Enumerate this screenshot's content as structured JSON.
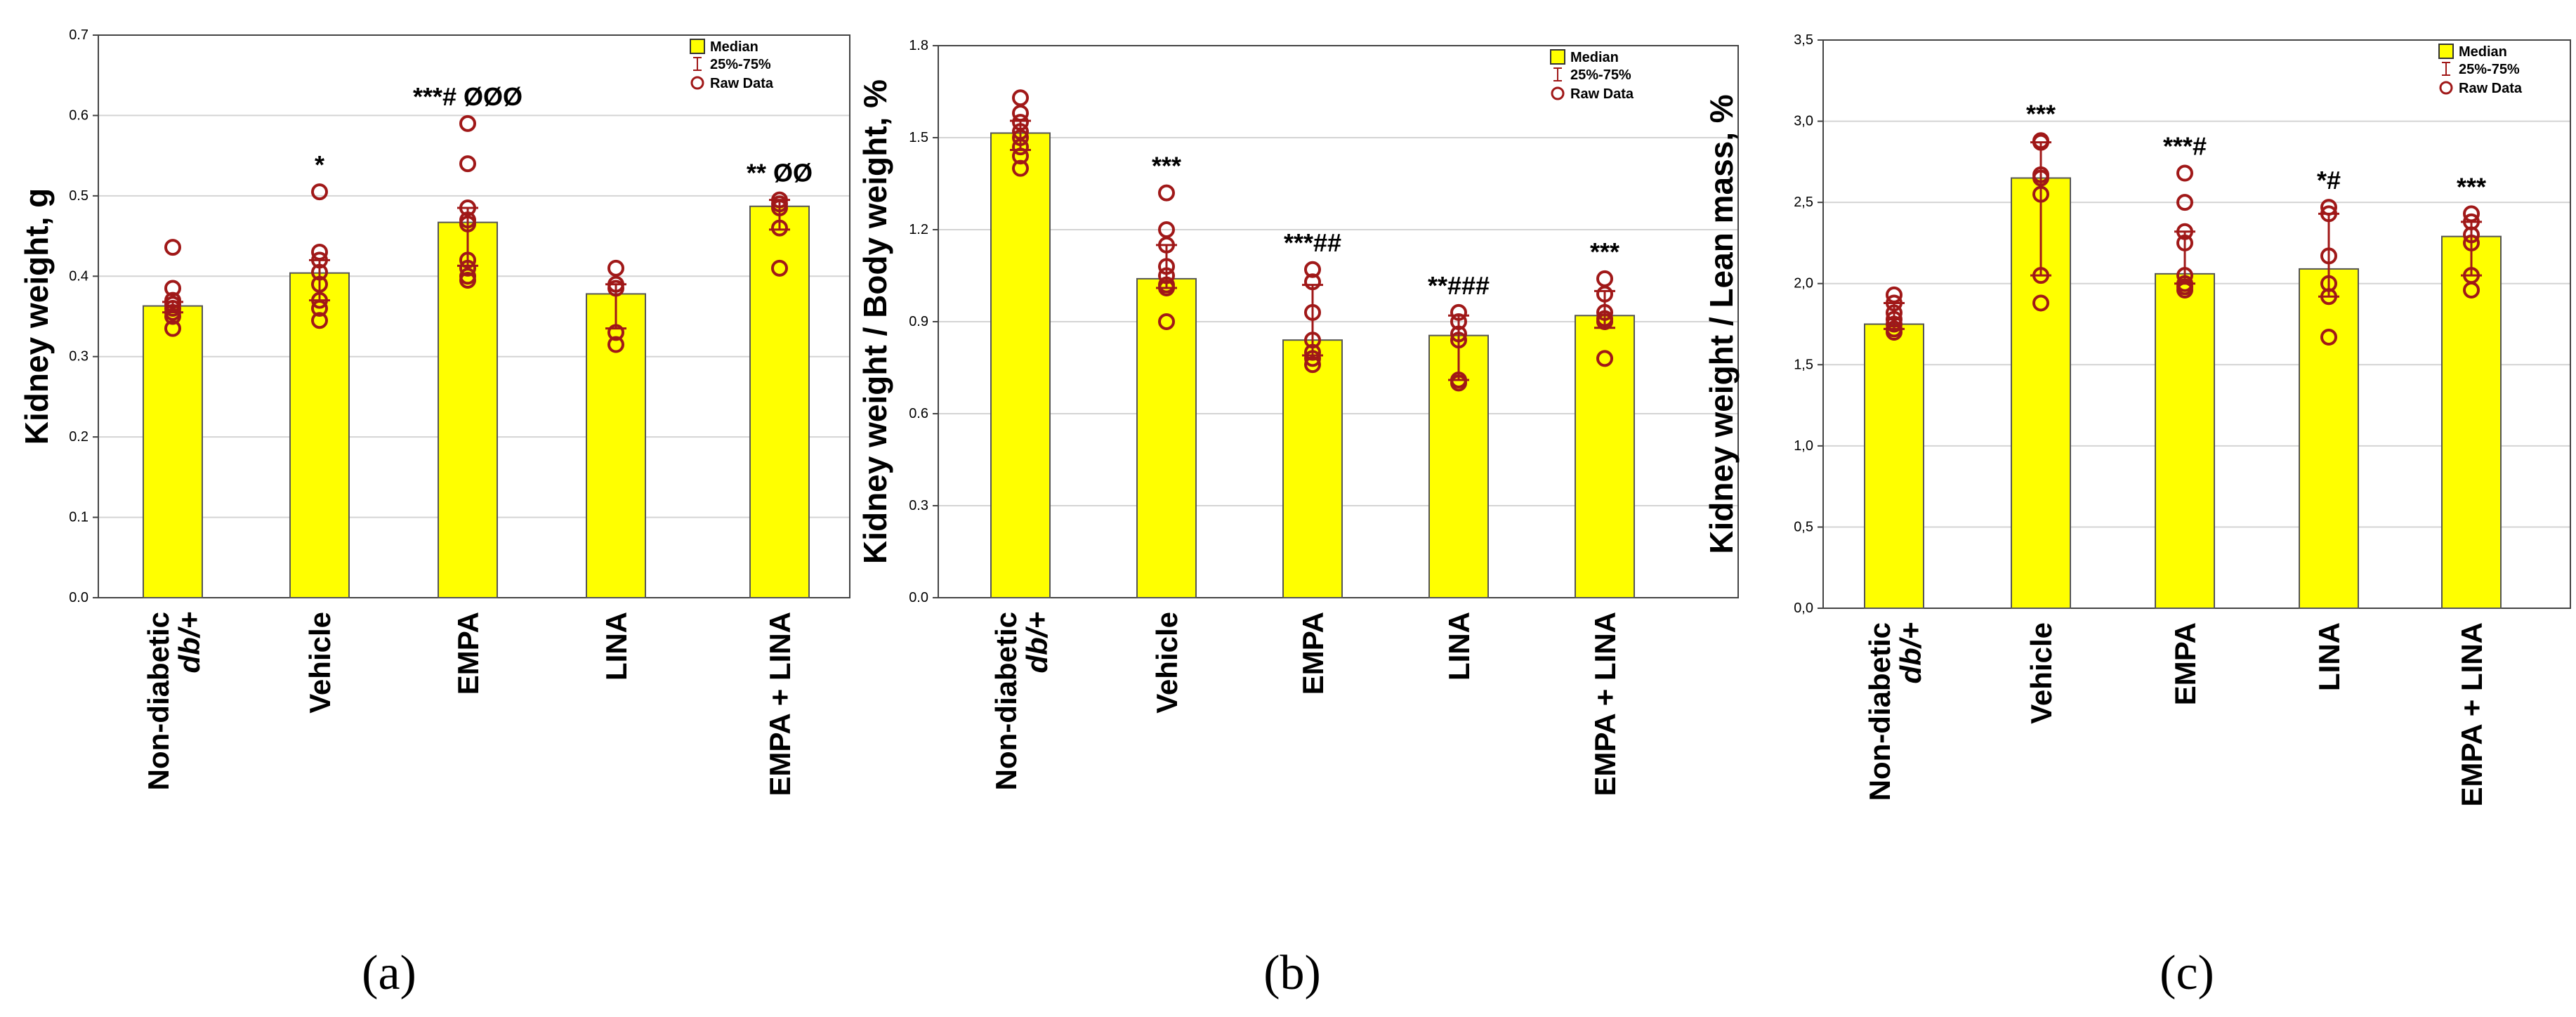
{
  "figure_labels": [
    "(a)",
    "(b)",
    "(c)"
  ],
  "chart_data": [
    {
      "type": "bar",
      "panel": "(a)",
      "ylabel": "Kidney weight, g",
      "ylim": [
        0,
        0.7
      ],
      "yticks": [
        0.0,
        0.1,
        0.2,
        0.3,
        0.4,
        0.5,
        0.6,
        0.7
      ],
      "ytick_labels": [
        "0.0",
        "0.1",
        "0.2",
        "0.3",
        "0.4",
        "0.5",
        "0.6",
        "0.7"
      ],
      "categories": [
        {
          "line1": "Non-diabetic",
          "line2": "db/+"
        },
        {
          "line1": "Vehicle",
          "line2": ""
        },
        {
          "line1": "EMPA",
          "line2": ""
        },
        {
          "line1": "LINA",
          "line2": ""
        },
        {
          "line1": "EMPA + LINA",
          "line2": ""
        }
      ],
      "median": [
        0.363,
        0.404,
        0.467,
        0.378,
        0.487
      ],
      "q25": [
        0.355,
        0.37,
        0.413,
        0.335,
        0.458
      ],
      "q75": [
        0.368,
        0.42,
        0.485,
        0.39,
        0.495
      ],
      "raw_data": [
        [
          0.436,
          0.385,
          0.37,
          0.365,
          0.36,
          0.355,
          0.35,
          0.335
        ],
        [
          0.505,
          0.43,
          0.42,
          0.405,
          0.39,
          0.37,
          0.36,
          0.345
        ],
        [
          0.59,
          0.54,
          0.485,
          0.47,
          0.465,
          0.42,
          0.41,
          0.4,
          0.395
        ],
        [
          0.41,
          0.39,
          0.385,
          0.33,
          0.315
        ],
        [
          0.495,
          0.49,
          0.485,
          0.46,
          0.41
        ]
      ],
      "annotations": [
        "",
        "*",
        "***# ØØØ",
        "",
        "** ØØ"
      ],
      "legend": {
        "median": "Median",
        "iqr": "25%-75%",
        "raw": "Raw Data"
      }
    },
    {
      "type": "bar",
      "panel": "(b)",
      "ylabel": "Kidney weight / Body weight, %",
      "ylim": [
        0,
        1.8
      ],
      "yticks": [
        0.0,
        0.3,
        0.6,
        0.9,
        1.2,
        1.5,
        1.8
      ],
      "ytick_labels": [
        "0.0",
        "0.3",
        "0.6",
        "0.9",
        "1.2",
        "1.5",
        "1.8"
      ],
      "categories": [
        {
          "line1": "Non-diabetic",
          "line2": "db/+"
        },
        {
          "line1": "Vehicle",
          "line2": ""
        },
        {
          "line1": "EMPA",
          "line2": ""
        },
        {
          "line1": "LINA",
          "line2": ""
        },
        {
          "line1": "EMPA + LINA",
          "line2": ""
        }
      ],
      "median": [
        1.515,
        1.04,
        0.84,
        0.855,
        0.92
      ],
      "q25": [
        1.46,
        1.01,
        0.79,
        0.71,
        0.88
      ],
      "q75": [
        1.555,
        1.15,
        1.02,
        0.92,
        1.0
      ],
      "raw_data": [
        [
          1.63,
          1.58,
          1.55,
          1.52,
          1.5,
          1.47,
          1.44,
          1.4
        ],
        [
          1.32,
          1.2,
          1.15,
          1.08,
          1.05,
          1.02,
          1.01,
          0.9
        ],
        [
          1.07,
          1.03,
          0.93,
          0.84,
          0.8,
          0.78,
          0.76
        ],
        [
          0.93,
          0.9,
          0.86,
          0.84,
          0.71,
          0.7
        ],
        [
          1.04,
          0.99,
          0.93,
          0.91,
          0.9,
          0.78
        ]
      ],
      "annotations": [
        "",
        "***",
        "***##",
        "**###",
        "***"
      ],
      "legend": {
        "median": "Median",
        "iqr": "25%-75%",
        "raw": "Raw Data"
      }
    },
    {
      "type": "bar",
      "panel": "(c)",
      "ylabel": "Kidney weight / Lean mass, %",
      "ylim": [
        0,
        3.5
      ],
      "yticks": [
        0.0,
        0.5,
        1.0,
        1.5,
        2.0,
        2.5,
        3.0,
        3.5
      ],
      "ytick_labels": [
        "0,0",
        "0,5",
        "1,0",
        "1,5",
        "2,0",
        "2,5",
        "3,0",
        "3,5"
      ],
      "categories": [
        {
          "line1": "Non-diabetic",
          "line2": "db/+"
        },
        {
          "line1": "Vehicle",
          "line2": ""
        },
        {
          "line1": "EMPA",
          "line2": ""
        },
        {
          "line1": "LINA",
          "line2": ""
        },
        {
          "line1": "EMPA + LINA",
          "line2": ""
        }
      ],
      "median": [
        1.75,
        2.65,
        2.06,
        2.09,
        2.29
      ],
      "q25": [
        1.72,
        2.05,
        2.0,
        1.92,
        2.05
      ],
      "q75": [
        1.88,
        2.87,
        2.32,
        2.43,
        2.38
      ],
      "raw_data": [
        [
          1.93,
          1.88,
          1.82,
          1.78,
          1.75,
          1.72,
          1.7
        ],
        [
          2.88,
          2.87,
          2.67,
          2.65,
          2.55,
          2.05,
          1.88
        ],
        [
          2.68,
          2.5,
          2.32,
          2.25,
          2.05,
          2.0,
          1.98,
          1.96
        ],
        [
          2.47,
          2.43,
          2.17,
          2.0,
          1.92,
          1.67
        ],
        [
          2.43,
          2.38,
          2.3,
          2.25,
          2.05,
          1.96
        ]
      ],
      "annotations": [
        "",
        "***",
        "***#",
        "*#",
        "***"
      ],
      "legend": {
        "median": "Median",
        "iqr": "25%-75%",
        "raw": "Raw Data"
      }
    }
  ]
}
